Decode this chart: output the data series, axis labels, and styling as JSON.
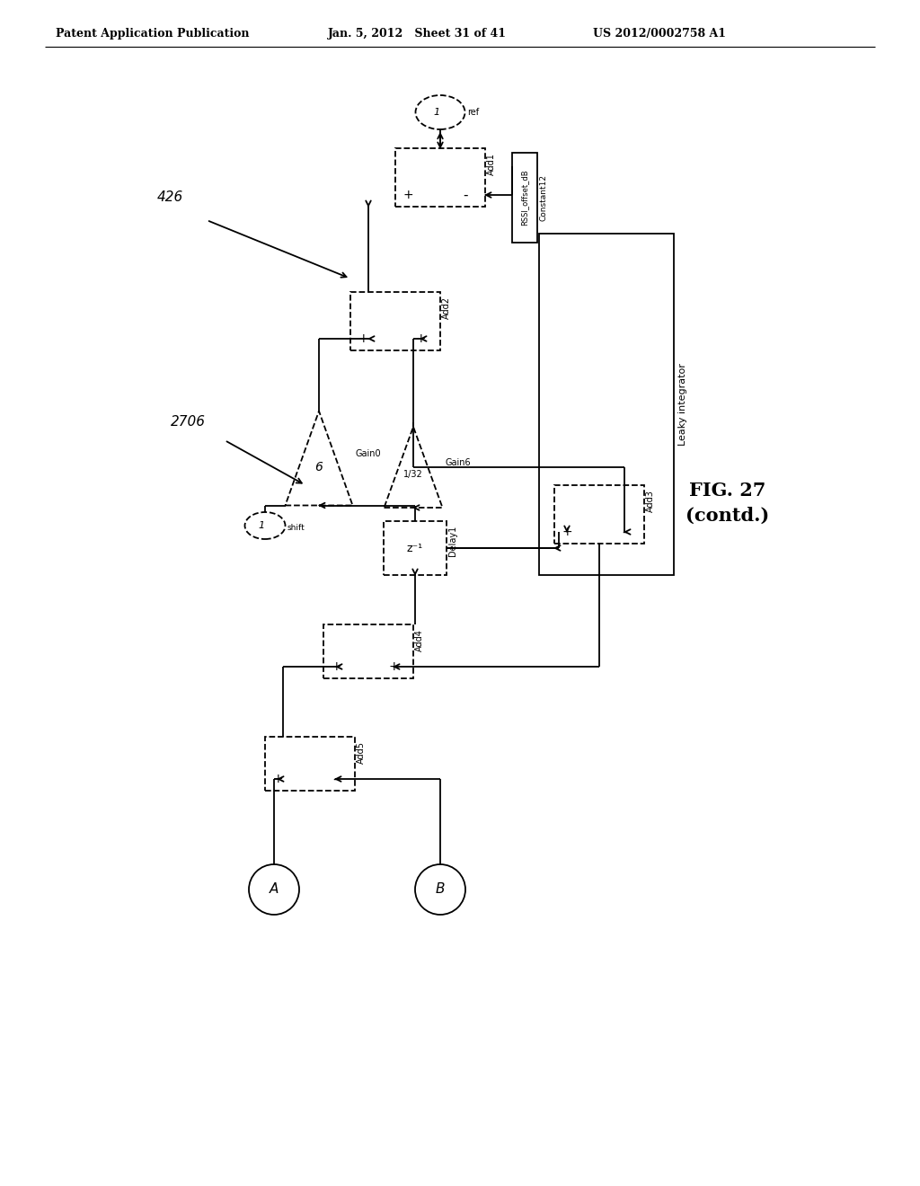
{
  "header_left": "Patent Application Publication",
  "header_mid": "Jan. 5, 2012   Sheet 31 of 41",
  "header_right": "US 2012/0002758 A1",
  "fig_label": "FIG. 27\n(contd.)",
  "leaky_integrator_label": "Leaky integrator",
  "label_426": "426",
  "label_2706": "2706",
  "background": "#ffffff"
}
